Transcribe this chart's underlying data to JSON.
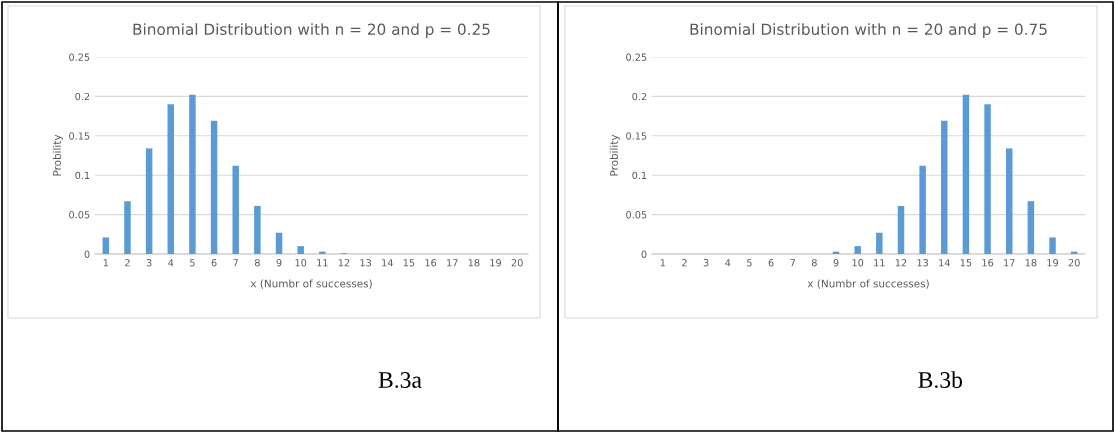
{
  "chart_data": [
    {
      "type": "bar",
      "title": "Binomial Distribution with n = 20 and p = 0.25",
      "xlabel": "x (Numbr of successes)",
      "ylabel": "Probility",
      "categories": [
        "1",
        "2",
        "3",
        "4",
        "5",
        "6",
        "7",
        "8",
        "9",
        "10",
        "11",
        "12",
        "13",
        "14",
        "15",
        "16",
        "17",
        "18",
        "19",
        "20"
      ],
      "values": [
        0.021,
        0.067,
        0.134,
        0.19,
        0.202,
        0.169,
        0.112,
        0.061,
        0.027,
        0.01,
        0.003,
        0.001,
        0,
        0,
        0,
        0,
        0,
        0,
        0,
        0
      ],
      "color": "#5b9bd5",
      "ylim": [
        0,
        0.25
      ],
      "yticks": [
        {
          "value": 0,
          "label": "0"
        },
        0.05,
        0.1,
        0.15,
        0.2,
        0.25
      ],
      "grid": "y",
      "annotations": [
        "B.3a"
      ]
    },
    {
      "type": "bar",
      "title": "Binomial Distribution with n = 20 and p = 0.75",
      "xlabel": "x (Numbr of successes)",
      "ylabel": "Probility",
      "categories": [
        "1",
        "2",
        "3",
        "4",
        "5",
        "6",
        "7",
        "8",
        "9",
        "10",
        "11",
        "12",
        "13",
        "14",
        "15",
        "16",
        "17",
        "18",
        "19",
        "20"
      ],
      "values": [
        0,
        0,
        0,
        0,
        0,
        0,
        0,
        0,
        0.003,
        0.01,
        0.027,
        0.061,
        0.112,
        0.169,
        0.202,
        0.19,
        0.134,
        0.067,
        0.021,
        0.003
      ],
      "color": "#5b9bd5",
      "ylim": [
        0,
        0.25
      ],
      "yticks": [
        {
          "value": 0,
          "label": "0"
        },
        0.05,
        0.1,
        0.15,
        0.2,
        0.25
      ],
      "grid": "y",
      "annotations": [
        "B.3b"
      ]
    }
  ]
}
